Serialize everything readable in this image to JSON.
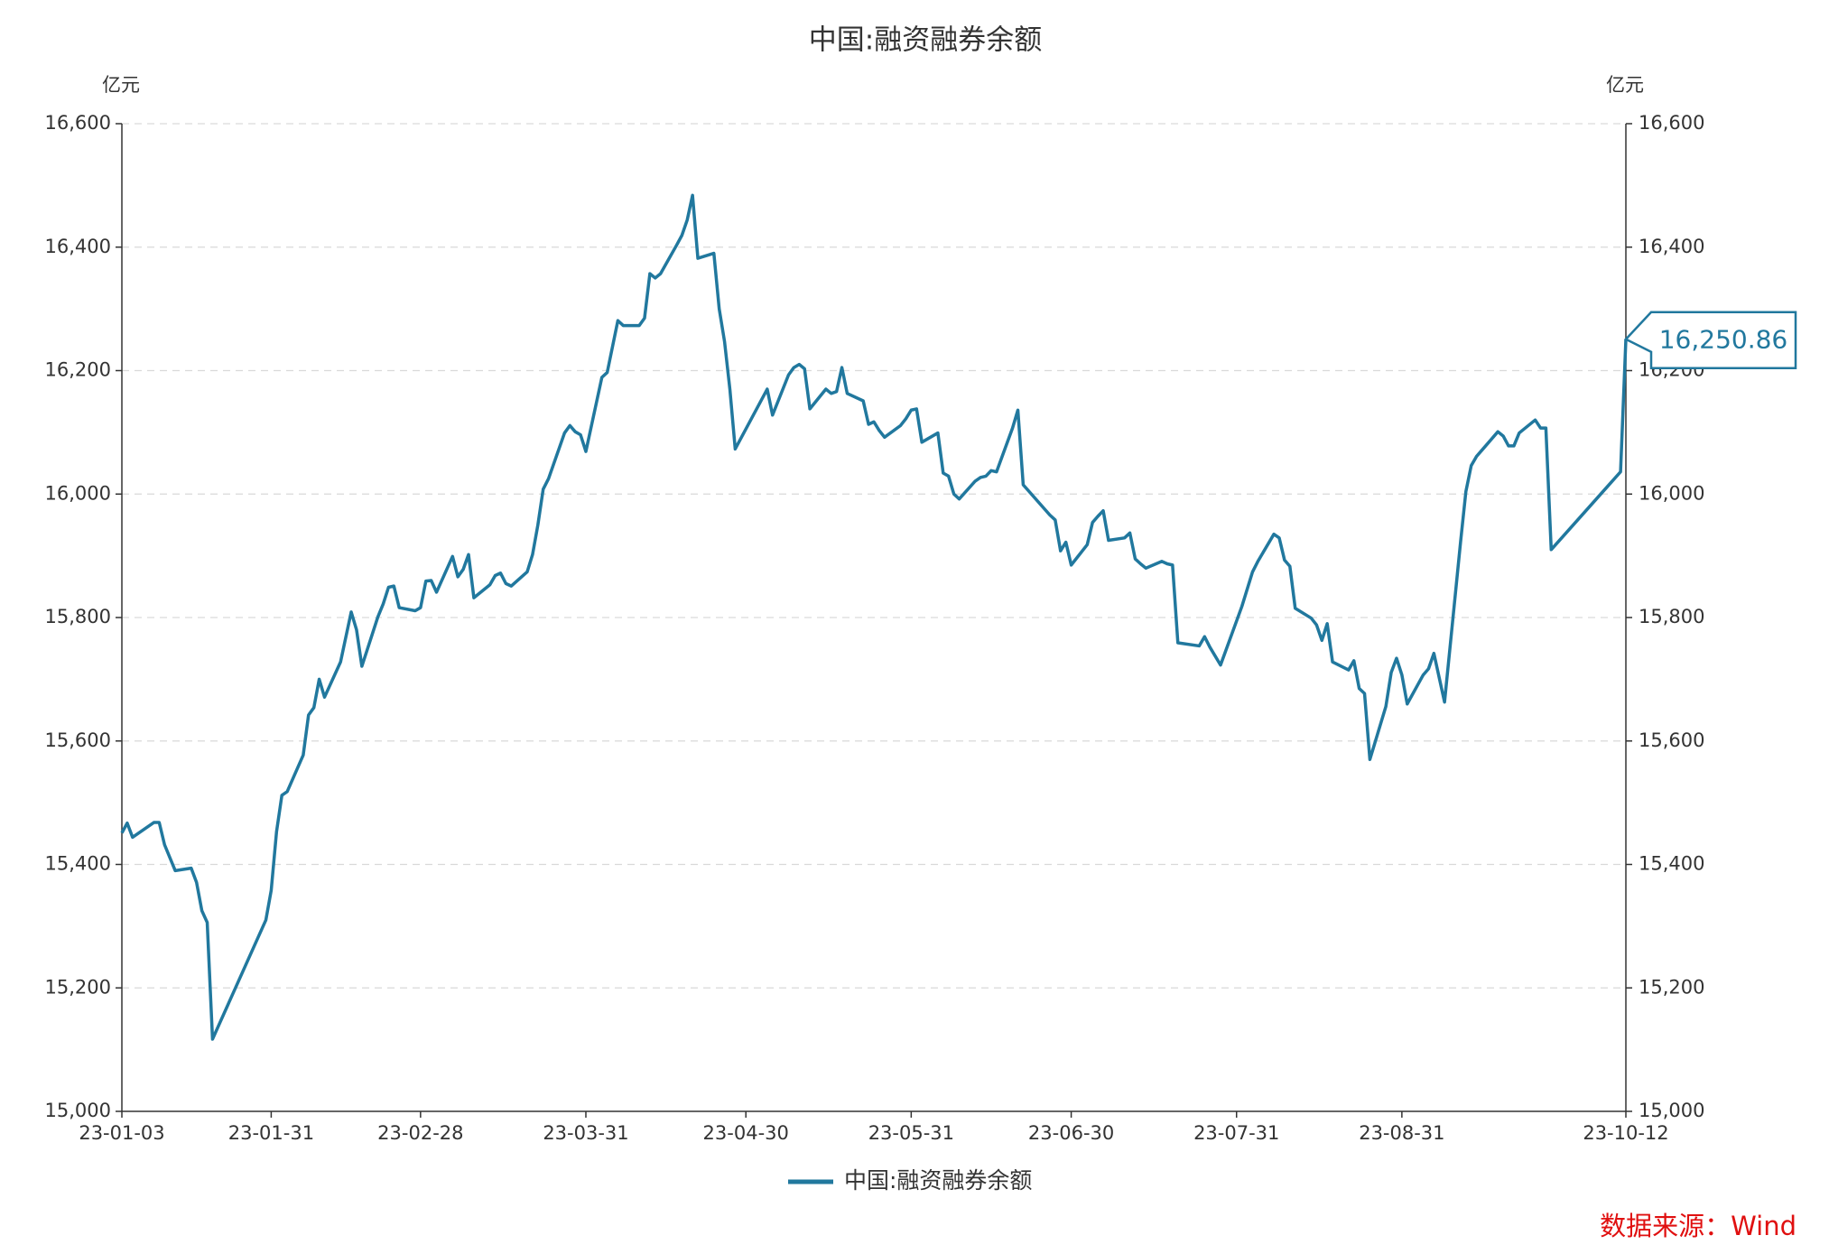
{
  "chart_data": {
    "type": "line",
    "title": "中国:融资融券余额",
    "y_label": "亿元",
    "y2_label": "亿元",
    "source": "数据来源：Wind",
    "x": [
      "23-01-03",
      "23-01-04",
      "23-01-05",
      "23-01-09",
      "23-01-10",
      "23-01-11",
      "23-01-13",
      "23-01-16",
      "23-01-17",
      "23-01-18",
      "23-01-19",
      "23-01-20",
      "23-01-30",
      "23-01-31",
      "23-02-01",
      "23-02-02",
      "23-02-03",
      "23-02-06",
      "23-02-07",
      "23-02-08",
      "23-02-09",
      "23-02-10",
      "23-02-13",
      "23-02-15",
      "23-02-16",
      "23-02-17",
      "23-02-20",
      "23-02-21",
      "23-02-22",
      "23-02-23",
      "23-02-24",
      "23-02-27",
      "23-02-28",
      "23-03-01",
      "23-03-02",
      "23-03-03",
      "23-03-06",
      "23-03-07",
      "23-03-08",
      "23-03-09",
      "23-03-10",
      "23-03-13",
      "23-03-14",
      "23-03-15",
      "23-03-16",
      "23-03-17",
      "23-03-20",
      "23-03-21",
      "23-03-22",
      "23-03-23",
      "23-03-24",
      "23-03-27",
      "23-03-28",
      "23-03-29",
      "23-03-30",
      "23-03-31",
      "23-04-03",
      "23-04-04",
      "23-04-06",
      "23-04-07",
      "23-04-10",
      "23-04-11",
      "23-04-12",
      "23-04-13",
      "23-04-14",
      "23-04-17",
      "23-04-18",
      "23-04-19",
      "23-04-20",
      "23-04-21",
      "23-04-24",
      "23-04-25",
      "23-04-26",
      "23-04-27",
      "23-04-28",
      "23-05-04",
      "23-05-05",
      "23-05-08",
      "23-05-09",
      "23-05-10",
      "23-05-11",
      "23-05-12",
      "23-05-15",
      "23-05-16",
      "23-05-17",
      "23-05-18",
      "23-05-19",
      "23-05-22",
      "23-05-23",
      "23-05-24",
      "23-05-25",
      "23-05-26",
      "23-05-29",
      "23-05-30",
      "23-05-31",
      "23-06-01",
      "23-06-02",
      "23-06-05",
      "23-06-06",
      "23-06-07",
      "23-06-08",
      "23-06-09",
      "23-06-12",
      "23-06-13",
      "23-06-14",
      "23-06-15",
      "23-06-16",
      "23-06-19",
      "23-06-20",
      "23-06-21",
      "23-06-26",
      "23-06-27",
      "23-06-28",
      "23-06-29",
      "23-06-30",
      "23-07-03",
      "23-07-04",
      "23-07-05",
      "23-07-06",
      "23-07-07",
      "23-07-10",
      "23-07-11",
      "23-07-12",
      "23-07-13",
      "23-07-14",
      "23-07-17",
      "23-07-18",
      "23-07-19",
      "23-07-20",
      "23-07-24",
      "23-07-25",
      "23-07-26",
      "23-07-28",
      "23-08-01",
      "23-08-03",
      "23-08-04",
      "23-08-07",
      "23-08-08",
      "23-08-09",
      "23-08-10",
      "23-08-11",
      "23-08-14",
      "23-08-15",
      "23-08-16",
      "23-08-17",
      "23-08-18",
      "23-08-21",
      "23-08-22",
      "23-08-23",
      "23-08-24",
      "23-08-25",
      "23-08-28",
      "23-08-29",
      "23-08-30",
      "23-08-31",
      "23-09-01",
      "23-09-04",
      "23-09-05",
      "23-09-06",
      "23-09-08",
      "23-09-11",
      "23-09-12",
      "23-09-13",
      "23-09-14",
      "23-09-15",
      "23-09-18",
      "23-09-19",
      "23-09-20",
      "23-09-21",
      "23-09-22",
      "23-09-25",
      "23-09-26",
      "23-09-27",
      "23-09-28",
      "23-10-11",
      "23-10-12"
    ],
    "series": [
      {
        "name": "中国:融资融券余额",
        "color": "#21789e",
        "values": [
          15451,
          15467,
          15444,
          15468,
          15468,
          15432,
          15390,
          15394,
          15371,
          15325,
          15306,
          15117,
          15310,
          15358,
          15453,
          15512,
          15518,
          15577,
          15642,
          15654,
          15700,
          15671,
          15728,
          15809,
          15780,
          15721,
          15801,
          15822,
          15849,
          15851,
          15816,
          15811,
          15816,
          15859,
          15860,
          15841,
          15899,
          15866,
          15878,
          15902,
          15832,
          15853,
          15868,
          15872,
          15855,
          15851,
          15874,
          15902,
          15950,
          16008,
          16025,
          16099,
          16111,
          16101,
          16096,
          16069,
          16189,
          16197,
          16281,
          16273,
          16273,
          16285,
          16357,
          16350,
          16357,
          16403,
          16419,
          16444,
          16484,
          16382,
          16390,
          16300,
          16247,
          16170,
          16073,
          16170,
          16128,
          16193,
          16205,
          16210,
          16203,
          16138,
          16170,
          16163,
          16166,
          16205,
          16163,
          16151,
          16113,
          16117,
          16103,
          16092,
          16111,
          16122,
          16136,
          16138,
          16084,
          16099,
          16034,
          16029,
          16000,
          15992,
          16021,
          16027,
          16029,
          16038,
          16036,
          16107,
          16136,
          16015,
          15966,
          15958,
          15908,
          15922,
          15885,
          15918,
          15954,
          15964,
          15973,
          15925,
          15929,
          15937,
          15895,
          15887,
          15880,
          15891,
          15887,
          15885,
          15759,
          15754,
          15769,
          15752,
          15723,
          15818,
          15874,
          15891,
          15935,
          15929,
          15893,
          15883,
          15815,
          15799,
          15788,
          15763,
          15790,
          15728,
          15715,
          15730,
          15685,
          15677,
          15570,
          15656,
          15711,
          15734,
          15707,
          15660,
          15707,
          15717,
          15742,
          15663,
          15922,
          16004,
          16046,
          16061,
          16071,
          16101,
          16094,
          16078,
          16078,
          16099,
          16120,
          16107,
          16107,
          15910,
          16036,
          16250.86
        ]
      }
    ],
    "end_label": "16,250.86",
    "xlim": [
      "23-01-03",
      "23-10-12"
    ],
    "xticks": [
      "23-01-03",
      "23-01-31",
      "23-02-28",
      "23-03-31",
      "23-04-30",
      "23-05-31",
      "23-06-30",
      "23-07-31",
      "23-08-31",
      "23-10-12"
    ],
    "ylim": [
      15000,
      16600
    ],
    "yticks": [
      {
        "value": 15000,
        "label": "15,000"
      },
      {
        "value": 15200,
        "label": "15,200"
      },
      {
        "value": 15400,
        "label": "15,400"
      },
      {
        "value": 15600,
        "label": "15,600"
      },
      {
        "value": 15800,
        "label": "15,800"
      },
      {
        "value": 16000,
        "label": "16,000"
      },
      {
        "value": 16200,
        "label": "16,200"
      },
      {
        "value": 16400,
        "label": "16,400"
      },
      {
        "value": 16600,
        "label": "16,600"
      }
    ],
    "y2lim": [
      15000,
      16600
    ],
    "y2ticks": [
      {
        "value": 15000,
        "label": "15,000"
      },
      {
        "value": 15200,
        "label": "15,200"
      },
      {
        "value": 15400,
        "label": "15,400"
      },
      {
        "value": 15600,
        "label": "15,600"
      },
      {
        "value": 15800,
        "label": "15,800"
      },
      {
        "value": 16000,
        "label": "16,000"
      },
      {
        "value": 16200,
        "label": "16,200"
      },
      {
        "value": 16400,
        "label": "16,400"
      },
      {
        "value": 16600,
        "label": "16,600"
      }
    ],
    "grid": true
  }
}
